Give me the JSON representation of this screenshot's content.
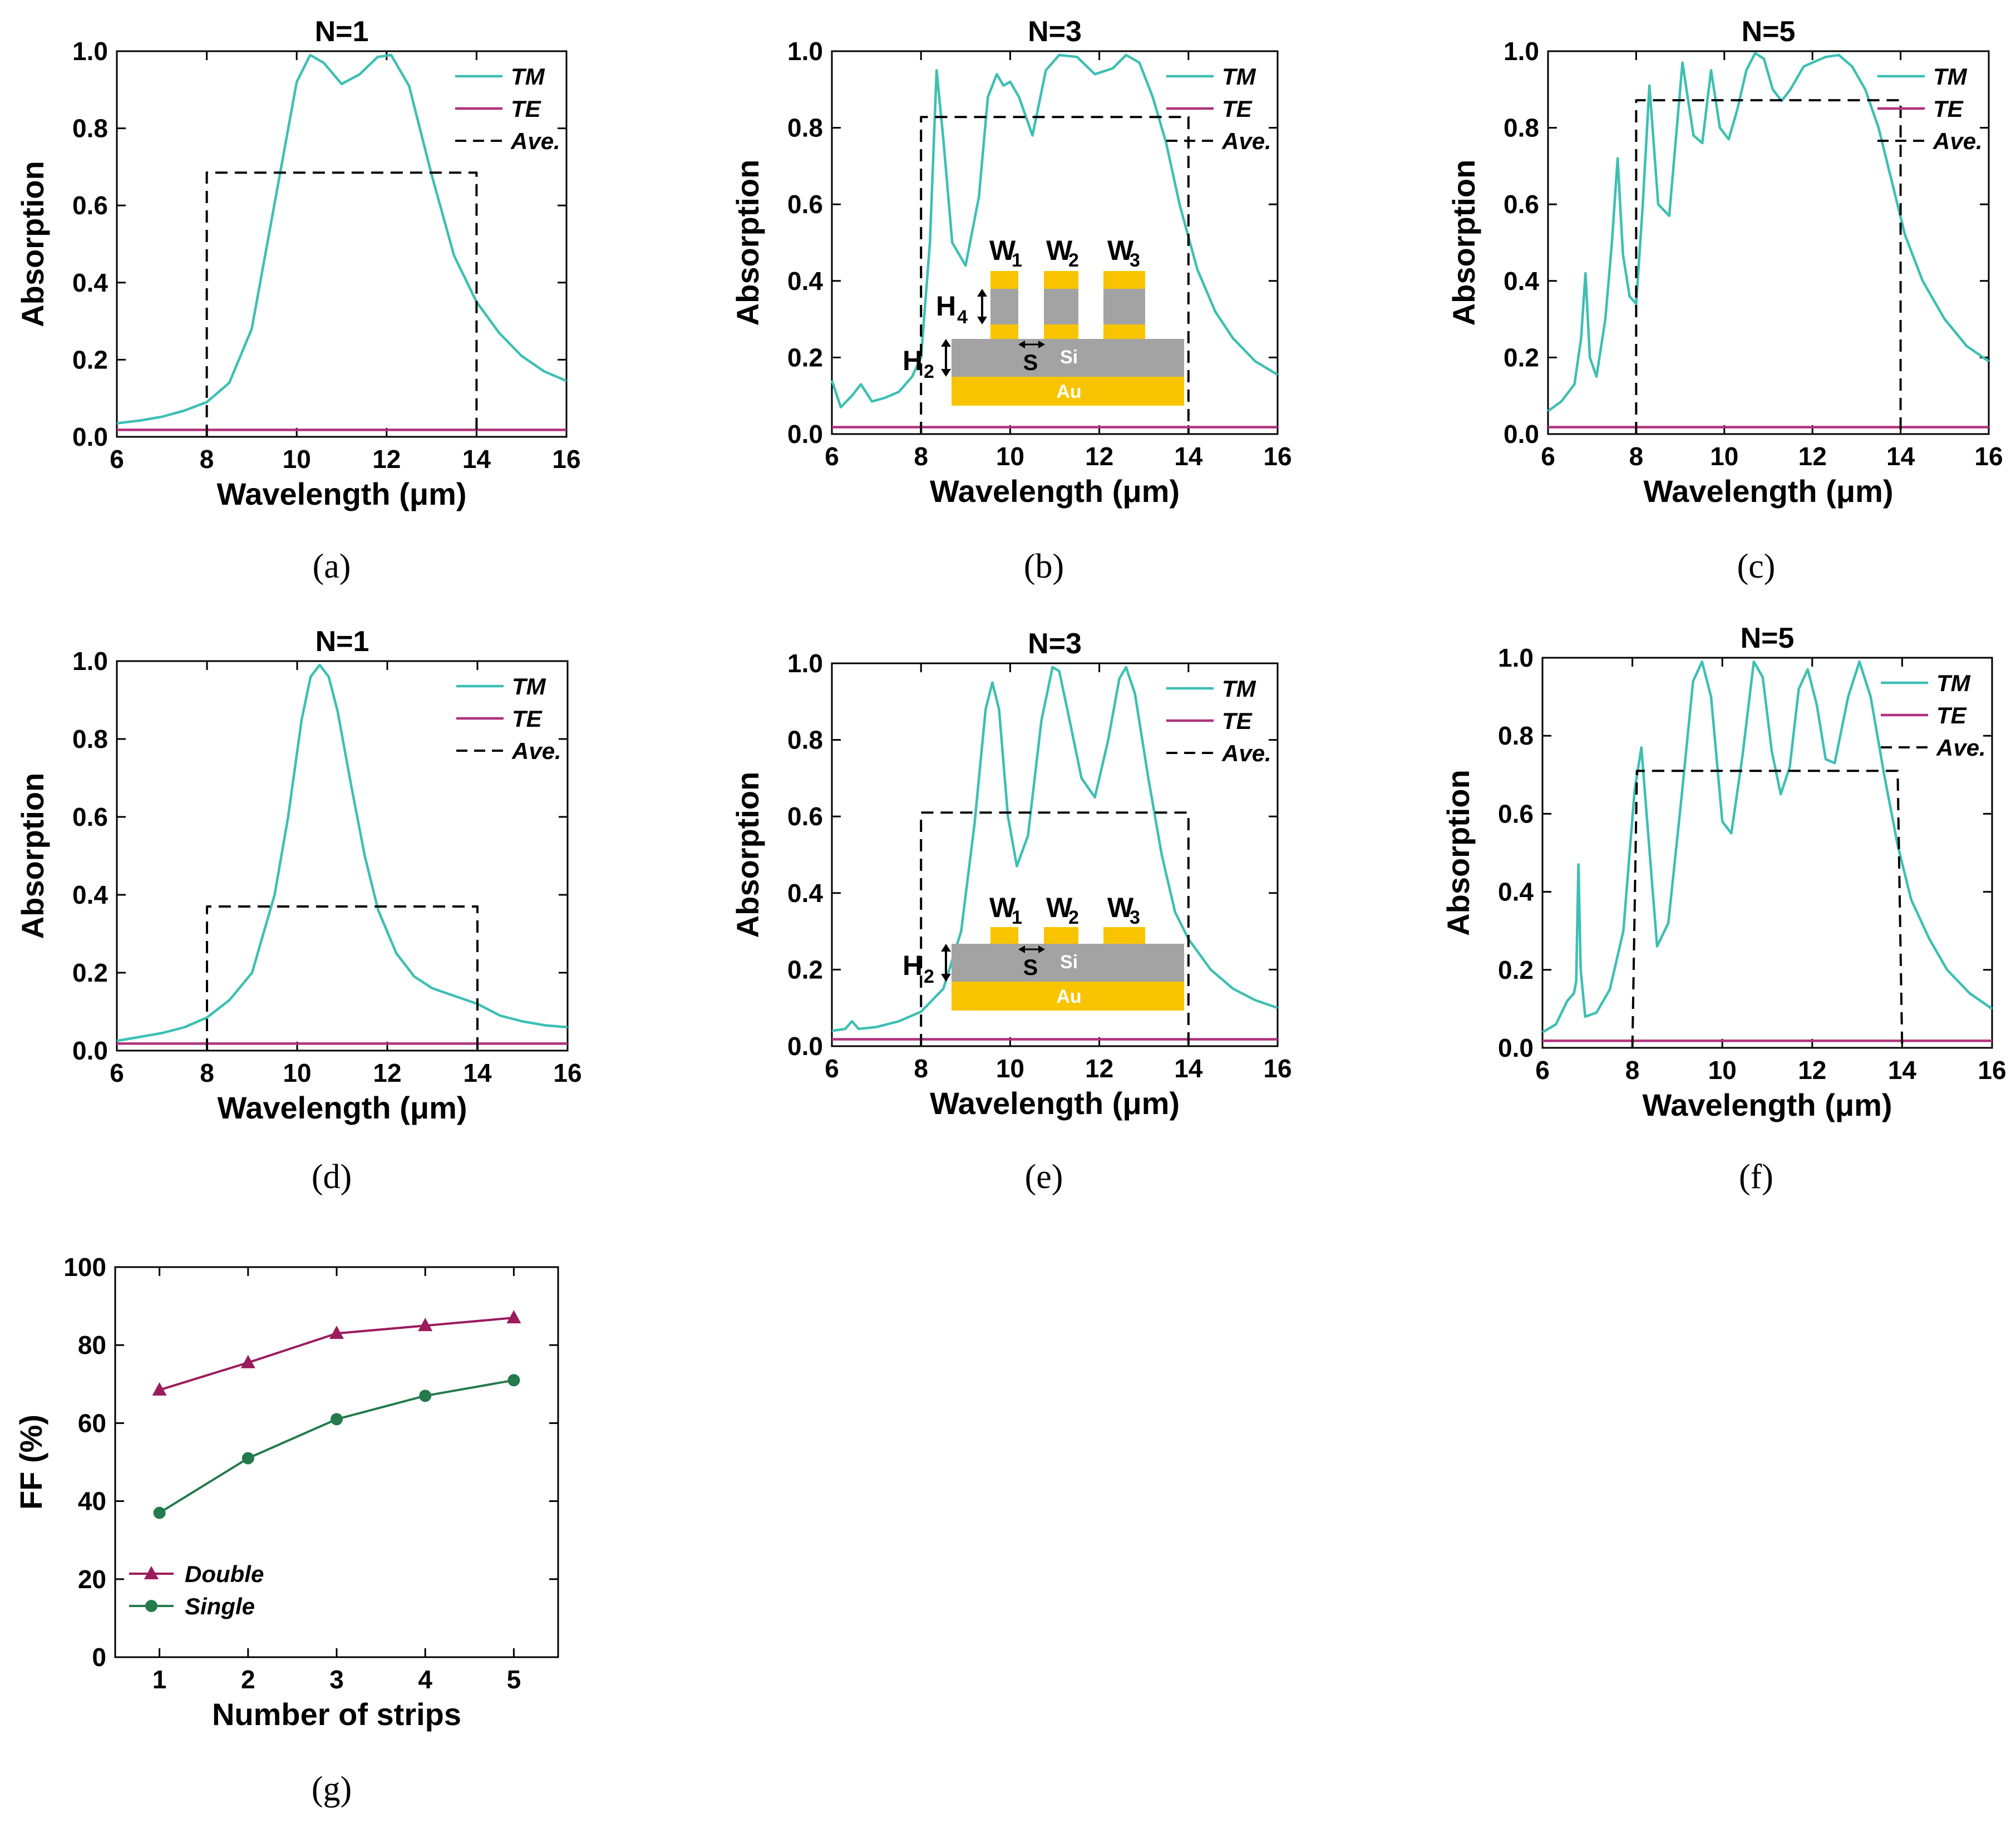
{
  "colors": {
    "tm": "#3dbfb3",
    "te": "#b0327e",
    "ave": "#000000",
    "double": "#9b1b5c",
    "single": "#247a4a",
    "gold": "#f8c400",
    "silicon": "#a3a3a3"
  },
  "inset": {
    "w1_main": "W",
    "w1_sub": "1",
    "w2_main": "W",
    "w2_sub": "2",
    "w3_main": "W",
    "w3_sub": "3",
    "h4_main": "H",
    "h4_sub": "4",
    "h2_main": "H",
    "h2_sub": "2",
    "s_label": "S",
    "si_label": "Si",
    "au_label": "Au"
  },
  "chart_data": [
    {
      "id": "a",
      "type": "line",
      "caption": "(a)",
      "title": "N=1",
      "xlabel": "Wavelength (μm)",
      "ylabel": "Absorption",
      "xlim": [
        6,
        16
      ],
      "ylim": [
        0,
        1
      ],
      "xticks": [
        6,
        8,
        10,
        12,
        14,
        16
      ],
      "xtick_labels": [
        "6",
        "8",
        "10",
        "12",
        "14",
        "16"
      ],
      "yticks": [
        0,
        0.2,
        0.4,
        0.6,
        0.8,
        1.0
      ],
      "ytick_labels": [
        "0.0",
        "0.2",
        "0.4",
        "0.6",
        "0.8",
        "1.0"
      ],
      "legend": [
        "TM",
        "TE",
        "Ave."
      ],
      "legend_position": "top-right",
      "series": [
        {
          "name": "TM",
          "x": [
            6,
            6.5,
            7,
            7.5,
            8,
            8.5,
            9,
            9.5,
            10,
            10.3,
            10.6,
            11.0,
            11.4,
            11.8,
            12.1,
            12.5,
            13,
            13.5,
            14,
            14.5,
            15,
            15.5,
            16
          ],
          "y": [
            0.035,
            0.042,
            0.052,
            0.068,
            0.09,
            0.14,
            0.28,
            0.6,
            0.92,
            0.99,
            0.97,
            0.915,
            0.94,
            0.985,
            0.99,
            0.91,
            0.68,
            0.47,
            0.35,
            0.27,
            0.21,
            0.17,
            0.145
          ]
        },
        {
          "name": "TE",
          "x": [
            6,
            16
          ],
          "y": [
            0.018,
            0.018
          ]
        },
        {
          "name": "Ave.",
          "x": [
            8,
            8,
            14,
            14
          ],
          "y": [
            0,
            0.685,
            0.685,
            0
          ]
        }
      ]
    },
    {
      "id": "b",
      "type": "line",
      "caption": "(b)",
      "title": "N=3",
      "xlabel": "Wavelength (μm)",
      "ylabel": "Absorption",
      "xlim": [
        6,
        16
      ],
      "ylim": [
        0,
        1
      ],
      "xticks": [
        6,
        8,
        10,
        12,
        14,
        16
      ],
      "xtick_labels": [
        "6",
        "8",
        "10",
        "12",
        "14",
        "16"
      ],
      "yticks": [
        0,
        0.2,
        0.4,
        0.6,
        0.8,
        1.0
      ],
      "ytick_labels": [
        "0.0",
        "0.2",
        "0.4",
        "0.6",
        "0.8",
        "1.0"
      ],
      "legend": [
        "TM",
        "TE",
        "Ave."
      ],
      "legend_position": "top-right",
      "series": [
        {
          "name": "TM",
          "x": [
            6,
            6.2,
            6.45,
            6.65,
            6.9,
            7.2,
            7.5,
            7.8,
            8.0,
            8.2,
            8.35,
            8.5,
            8.7,
            9.0,
            9.3,
            9.5,
            9.7,
            9.85,
            10.0,
            10.2,
            10.5,
            10.8,
            11.1,
            11.5,
            11.9,
            12.3,
            12.6,
            12.9,
            13.2,
            13.5,
            13.8,
            14.2,
            14.6,
            15,
            15.5,
            16
          ],
          "y": [
            0.14,
            0.07,
            0.1,
            0.13,
            0.085,
            0.095,
            0.11,
            0.15,
            0.2,
            0.5,
            0.95,
            0.77,
            0.5,
            0.44,
            0.62,
            0.88,
            0.94,
            0.91,
            0.92,
            0.88,
            0.78,
            0.95,
            0.99,
            0.985,
            0.94,
            0.955,
            0.99,
            0.97,
            0.88,
            0.76,
            0.6,
            0.43,
            0.32,
            0.25,
            0.19,
            0.155
          ]
        },
        {
          "name": "TE",
          "x": [
            6,
            16
          ],
          "y": [
            0.018,
            0.018
          ]
        },
        {
          "name": "Ave.",
          "x": [
            8,
            8,
            14,
            14
          ],
          "y": [
            0,
            0.828,
            0.828,
            0
          ]
        }
      ]
    },
    {
      "id": "c",
      "type": "line",
      "caption": "(c)",
      "title": "N=5",
      "xlabel": "Wavelength (μm)",
      "ylabel": "Absorption",
      "xlim": [
        6,
        16
      ],
      "ylim": [
        0,
        1
      ],
      "xticks": [
        6,
        8,
        10,
        12,
        14,
        16
      ],
      "xtick_labels": [
        "6",
        "8",
        "10",
        "12",
        "14",
        "16"
      ],
      "yticks": [
        0,
        0.2,
        0.4,
        0.6,
        0.8,
        1.0
      ],
      "ytick_labels": [
        "0.0",
        "0.2",
        "0.4",
        "0.6",
        "0.8",
        "1.0"
      ],
      "legend": [
        "TM",
        "TE",
        "Ave."
      ],
      "legend_position": "top-right",
      "series": [
        {
          "name": "TM",
          "x": [
            6,
            6.3,
            6.6,
            6.75,
            6.85,
            6.95,
            7.1,
            7.3,
            7.45,
            7.58,
            7.7,
            7.85,
            8.0,
            8.15,
            8.3,
            8.5,
            8.75,
            9.05,
            9.3,
            9.5,
            9.7,
            9.9,
            10.1,
            10.3,
            10.5,
            10.7,
            10.9,
            11.1,
            11.3,
            11.5,
            11.8,
            12.0,
            12.3,
            12.6,
            12.9,
            13.2,
            13.5,
            13.8,
            14.1,
            14.5,
            15,
            15.5,
            16
          ],
          "y": [
            0.06,
            0.085,
            0.13,
            0.25,
            0.42,
            0.2,
            0.15,
            0.3,
            0.5,
            0.72,
            0.47,
            0.36,
            0.34,
            0.6,
            0.91,
            0.6,
            0.57,
            0.97,
            0.78,
            0.76,
            0.95,
            0.8,
            0.77,
            0.85,
            0.95,
            0.995,
            0.98,
            0.9,
            0.87,
            0.9,
            0.96,
            0.97,
            0.985,
            0.99,
            0.96,
            0.9,
            0.8,
            0.66,
            0.52,
            0.4,
            0.3,
            0.23,
            0.19
          ]
        },
        {
          "name": "TE",
          "x": [
            6,
            16
          ],
          "y": [
            0.018,
            0.018
          ]
        },
        {
          "name": "Ave.",
          "x": [
            8,
            8,
            14,
            14
          ],
          "y": [
            0,
            0.872,
            0.872,
            0
          ]
        }
      ]
    },
    {
      "id": "d",
      "type": "line",
      "caption": "(d)",
      "title": "N=1",
      "xlabel": "Wavelength (μm)",
      "ylabel": "Absorption",
      "xlim": [
        6,
        16
      ],
      "ylim": [
        0,
        1
      ],
      "xticks": [
        6,
        8,
        10,
        12,
        14,
        16
      ],
      "xtick_labels": [
        "6",
        "8",
        "10",
        "12",
        "14",
        "16"
      ],
      "yticks": [
        0,
        0.2,
        0.4,
        0.6,
        0.8,
        1.0
      ],
      "ytick_labels": [
        "0.0",
        "0.2",
        "0.4",
        "0.6",
        "0.8",
        "1.0"
      ],
      "legend": [
        "TM",
        "TE",
        "Ave."
      ],
      "legend_position": "top-right",
      "series": [
        {
          "name": "TM",
          "x": [
            6,
            6.5,
            7,
            7.5,
            8,
            8.5,
            9,
            9.5,
            9.8,
            10.1,
            10.3,
            10.5,
            10.7,
            10.9,
            11.2,
            11.5,
            11.8,
            12.2,
            12.6,
            13,
            13.5,
            14,
            14.5,
            15,
            15.5,
            16
          ],
          "y": [
            0.025,
            0.035,
            0.045,
            0.06,
            0.085,
            0.13,
            0.2,
            0.4,
            0.6,
            0.85,
            0.96,
            0.99,
            0.96,
            0.87,
            0.68,
            0.5,
            0.36,
            0.25,
            0.19,
            0.16,
            0.14,
            0.12,
            0.09,
            0.075,
            0.065,
            0.06
          ]
        },
        {
          "name": "TE",
          "x": [
            6,
            16
          ],
          "y": [
            0.018,
            0.018
          ]
        },
        {
          "name": "Ave.",
          "x": [
            8,
            8,
            14,
            14
          ],
          "y": [
            0,
            0.37,
            0.37,
            0
          ]
        }
      ]
    },
    {
      "id": "e",
      "type": "line",
      "caption": "(e)",
      "title": "N=3",
      "xlabel": "Wavelength (μm)",
      "ylabel": "Absorption",
      "xlim": [
        6,
        16
      ],
      "ylim": [
        0,
        1
      ],
      "xticks": [
        6,
        8,
        10,
        12,
        14,
        16
      ],
      "xtick_labels": [
        "6",
        "8",
        "10",
        "12",
        "14",
        "16"
      ],
      "yticks": [
        0,
        0.2,
        0.4,
        0.6,
        0.8,
        1.0
      ],
      "ytick_labels": [
        "0.0",
        "0.2",
        "0.4",
        "0.6",
        "0.8",
        "1.0"
      ],
      "legend": [
        "TM",
        "TE",
        "Ave."
      ],
      "legend_position": "top-right",
      "series": [
        {
          "name": "TM",
          "x": [
            6,
            6.3,
            6.45,
            6.6,
            7,
            7.5,
            8,
            8.5,
            8.9,
            9.2,
            9.45,
            9.6,
            9.75,
            9.95,
            10.15,
            10.4,
            10.7,
            10.95,
            11.1,
            11.3,
            11.6,
            11.9,
            12.2,
            12.45,
            12.6,
            12.8,
            13.1,
            13.4,
            13.7,
            14,
            14.5,
            15,
            15.5,
            16
          ],
          "y": [
            0.04,
            0.045,
            0.065,
            0.045,
            0.05,
            0.065,
            0.09,
            0.15,
            0.3,
            0.58,
            0.88,
            0.95,
            0.88,
            0.6,
            0.47,
            0.55,
            0.85,
            0.99,
            0.98,
            0.87,
            0.7,
            0.65,
            0.8,
            0.96,
            0.99,
            0.92,
            0.7,
            0.5,
            0.35,
            0.28,
            0.2,
            0.15,
            0.12,
            0.1
          ]
        },
        {
          "name": "TE",
          "x": [
            6,
            16
          ],
          "y": [
            0.018,
            0.018
          ]
        },
        {
          "name": "Ave.",
          "x": [
            8,
            8,
            14,
            14
          ],
          "y": [
            0,
            0.61,
            0.61,
            0
          ]
        }
      ]
    },
    {
      "id": "f",
      "type": "line",
      "caption": "(f)",
      "title": "N=5",
      "xlabel": "Wavelength (μm)",
      "ylabel": "Absorption",
      "xlim": [
        6,
        16
      ],
      "ylim": [
        0,
        1
      ],
      "xticks": [
        6,
        8,
        10,
        12,
        14,
        16
      ],
      "xtick_labels": [
        "6",
        "8",
        "10",
        "12",
        "14",
        "16"
      ],
      "yticks": [
        0,
        0.2,
        0.4,
        0.6,
        0.8,
        1.0
      ],
      "ytick_labels": [
        "0.0",
        "0.2",
        "0.4",
        "0.6",
        "0.8",
        "1.0"
      ],
      "legend": [
        "TM",
        "TE",
        "Ave."
      ],
      "legend_position": "top-right",
      "series": [
        {
          "name": "TM",
          "x": [
            6,
            6.3,
            6.55,
            6.7,
            6.75,
            6.8,
            6.85,
            6.95,
            7.2,
            7.5,
            7.8,
            8.05,
            8.2,
            8.35,
            8.55,
            8.8,
            9.1,
            9.35,
            9.55,
            9.75,
            10.0,
            10.2,
            10.45,
            10.7,
            10.9,
            11.1,
            11.3,
            11.5,
            11.7,
            11.9,
            12.1,
            12.3,
            12.5,
            12.8,
            13.05,
            13.3,
            13.6,
            13.9,
            14.2,
            14.6,
            15,
            15.5,
            16
          ],
          "y": [
            0.04,
            0.06,
            0.12,
            0.14,
            0.17,
            0.47,
            0.2,
            0.08,
            0.09,
            0.15,
            0.3,
            0.66,
            0.77,
            0.55,
            0.26,
            0.32,
            0.65,
            0.94,
            0.99,
            0.9,
            0.58,
            0.55,
            0.75,
            0.99,
            0.95,
            0.76,
            0.65,
            0.72,
            0.92,
            0.97,
            0.88,
            0.74,
            0.73,
            0.9,
            0.99,
            0.9,
            0.7,
            0.52,
            0.38,
            0.28,
            0.2,
            0.14,
            0.1
          ]
        },
        {
          "name": "TE",
          "x": [
            6,
            16
          ],
          "y": [
            0.018,
            0.018
          ]
        },
        {
          "name": "Ave.",
          "x": [
            8,
            8.1,
            13.9,
            14
          ],
          "y": [
            0,
            0.71,
            0.71,
            0
          ]
        }
      ]
    },
    {
      "id": "g",
      "type": "line",
      "caption": "(g)",
      "title": "",
      "xlabel": "Number of strips",
      "ylabel": "FF (%)",
      "xlim": [
        0.5,
        5.5
      ],
      "ylim": [
        0,
        100
      ],
      "xticks": [
        1,
        2,
        3,
        4,
        5
      ],
      "xtick_labels": [
        "1",
        "2",
        "3",
        "4",
        "5"
      ],
      "yticks": [
        0,
        20,
        40,
        60,
        80,
        100
      ],
      "ytick_labels": [
        "0",
        "20",
        "40",
        "60",
        "80",
        "100"
      ],
      "legend": [
        "Double",
        "Single"
      ],
      "legend_position": "bottom-left",
      "categories": [
        1,
        2,
        3,
        4,
        5
      ],
      "series": [
        {
          "name": "Double",
          "marker": "triangle",
          "values": [
            68.5,
            75.5,
            83,
            85,
            87
          ]
        },
        {
          "name": "Single",
          "marker": "circle",
          "values": [
            37,
            51,
            61,
            67,
            71
          ]
        }
      ]
    }
  ]
}
